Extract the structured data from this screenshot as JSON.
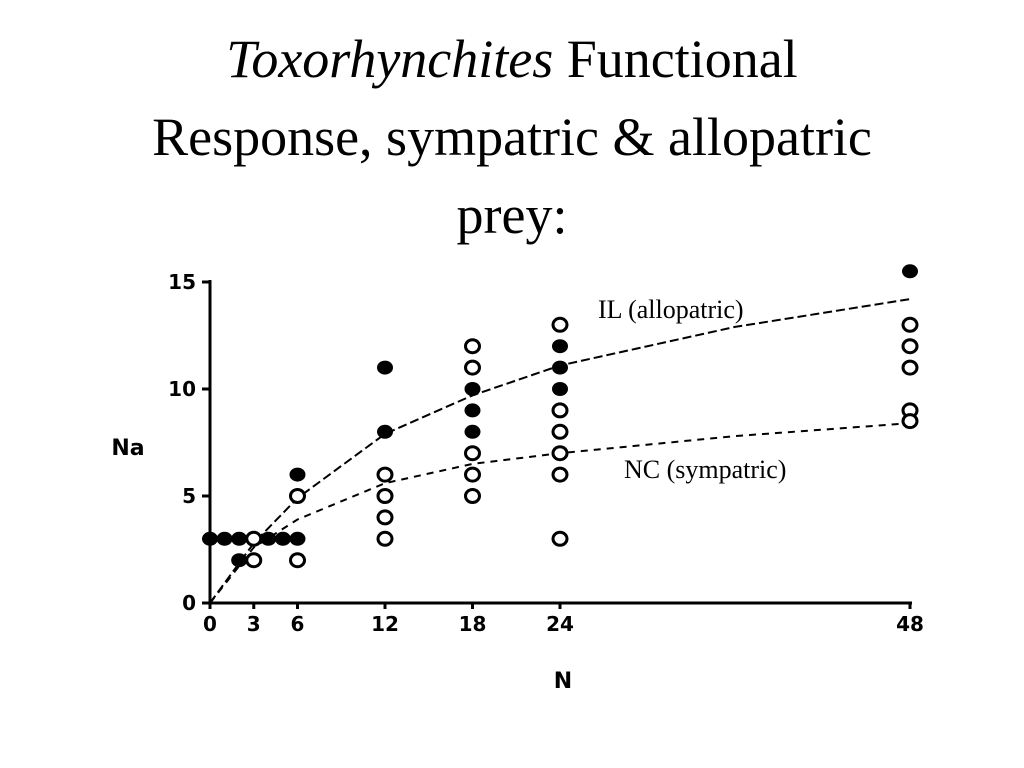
{
  "slide": {
    "title_italic": "Toxorhynchites",
    "title_rest_line1": " Functional",
    "title_line2": "Response, sympatric & allopatric",
    "title_line3": "prey:"
  },
  "chart_data": {
    "type": "scatter",
    "title": "",
    "xlabel": "N",
    "ylabel": "Na",
    "xlim": [
      0,
      48
    ],
    "ylim": [
      0,
      15
    ],
    "x_ticks": [
      0,
      3,
      6,
      12,
      18,
      24,
      48
    ],
    "y_ticks": [
      0,
      5,
      10,
      15
    ],
    "grid": false,
    "series": [
      {
        "name": "IL (allopatric)",
        "marker": "filled",
        "color": "#000000",
        "points": [
          [
            0,
            3
          ],
          [
            1,
            3
          ],
          [
            2,
            3
          ],
          [
            3,
            3
          ],
          [
            4,
            3
          ],
          [
            5,
            3
          ],
          [
            2,
            2
          ],
          [
            6,
            6
          ],
          [
            6,
            5
          ],
          [
            6,
            3
          ],
          [
            12,
            11
          ],
          [
            12,
            8
          ],
          [
            18,
            11
          ],
          [
            18,
            10
          ],
          [
            18,
            9
          ],
          [
            18,
            8
          ],
          [
            24,
            12
          ],
          [
            24,
            11
          ],
          [
            24,
            10
          ],
          [
            24,
            9
          ],
          [
            24,
            8
          ],
          [
            48,
            15.5
          ],
          [
            48,
            13
          ],
          [
            48,
            12
          ],
          [
            48,
            9
          ]
        ],
        "curve": [
          [
            0,
            0
          ],
          [
            3,
            2.8
          ],
          [
            6,
            4.9
          ],
          [
            12,
            7.9
          ],
          [
            18,
            9.7
          ],
          [
            24,
            11.1
          ],
          [
            36,
            12.9
          ],
          [
            48,
            14.2
          ]
        ]
      },
      {
        "name": "NC (sympatric)",
        "marker": "open",
        "color": "#000000",
        "points": [
          [
            3,
            3
          ],
          [
            3,
            2
          ],
          [
            6,
            2
          ],
          [
            6,
            5
          ],
          [
            12,
            6
          ],
          [
            12,
            5
          ],
          [
            12,
            4
          ],
          [
            12,
            3
          ],
          [
            18,
            12
          ],
          [
            18,
            11
          ],
          [
            18,
            7
          ],
          [
            18,
            6
          ],
          [
            18,
            5
          ],
          [
            24,
            13
          ],
          [
            24,
            9
          ],
          [
            24,
            8
          ],
          [
            24,
            7
          ],
          [
            24,
            6
          ],
          [
            24,
            3
          ],
          [
            48,
            13
          ],
          [
            48,
            12
          ],
          [
            48,
            11
          ],
          [
            48,
            9
          ],
          [
            48,
            8.5
          ]
        ],
        "curve": [
          [
            0,
            0
          ],
          [
            3,
            2.6
          ],
          [
            6,
            3.9
          ],
          [
            12,
            5.6
          ],
          [
            18,
            6.5
          ],
          [
            24,
            7.0
          ],
          [
            36,
            7.8
          ],
          [
            48,
            8.4
          ]
        ]
      }
    ]
  }
}
